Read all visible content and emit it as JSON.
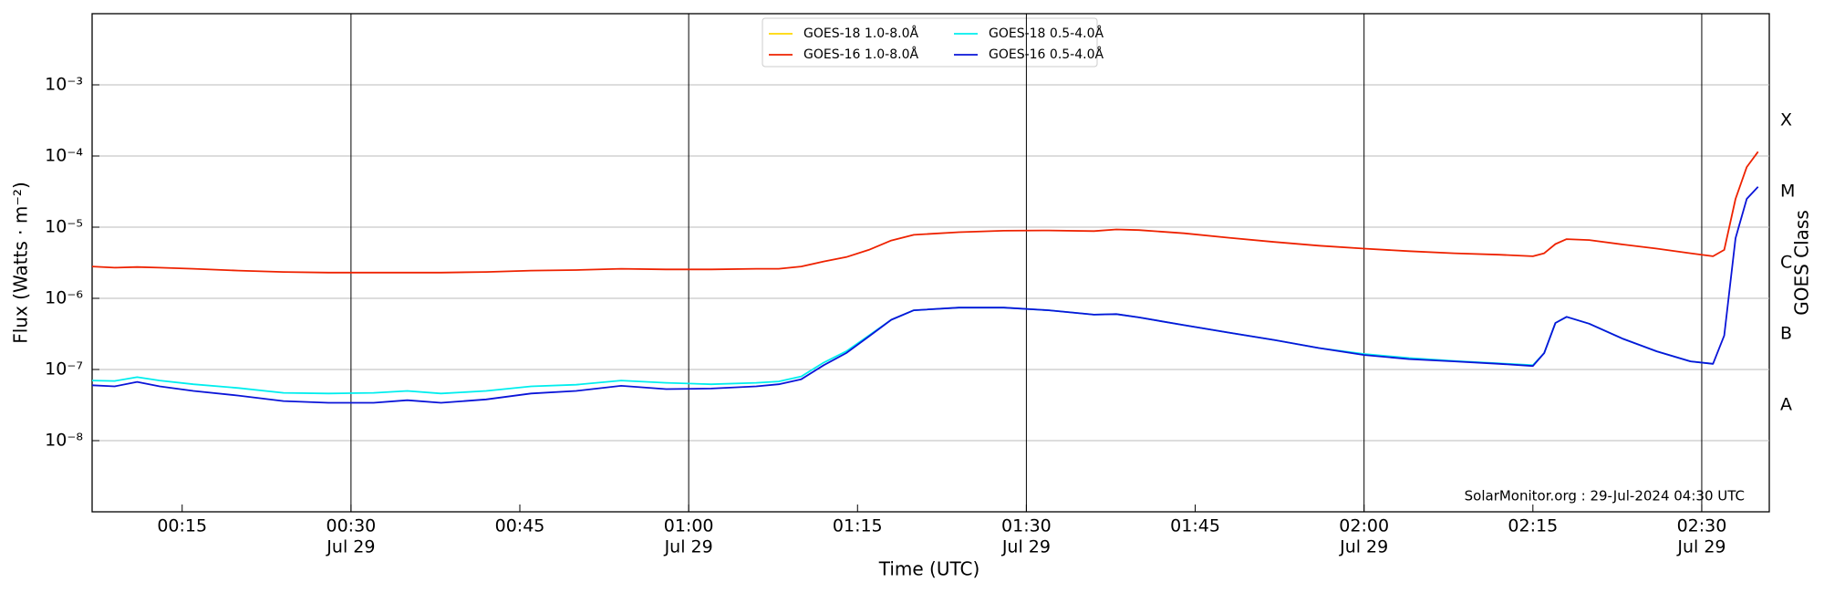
{
  "chart_data": {
    "type": "line",
    "xlabel": "Time (UTC)",
    "ylabel": "Flux (Watts · m⁻²)",
    "y2label": "GOES Class",
    "annotation": "SolarMonitor.org : 29-Jul-2024 04:30 UTC",
    "log_y": true,
    "grid": true,
    "legend": "upper center",
    "x": [
      "00:07",
      "00:09",
      "00:11",
      "00:13",
      "00:16",
      "00:20",
      "00:24",
      "00:28",
      "00:32",
      "00:35",
      "00:38",
      "00:42",
      "00:46",
      "00:50",
      "00:54",
      "00:58",
      "01:02",
      "01:06",
      "01:08",
      "01:10",
      "01:12",
      "01:14",
      "01:16",
      "01:18",
      "01:20",
      "01:24",
      "01:28",
      "01:32",
      "01:36",
      "01:38",
      "01:40",
      "01:44",
      "01:48",
      "01:52",
      "01:56",
      "02:00",
      "02:04",
      "02:08",
      "02:12",
      "02:15",
      "02:16",
      "02:17",
      "02:18",
      "02:20",
      "02:23",
      "02:26",
      "02:29",
      "02:31",
      "02:32",
      "02:33",
      "02:34",
      "02:35"
    ],
    "xlim": [
      "00:07",
      "02:36"
    ],
    "xticks": [
      "00:15",
      "00:30",
      "00:45",
      "01:00",
      "01:15",
      "01:30",
      "01:45",
      "02:00",
      "02:15",
      "02:30"
    ],
    "xtick_sublabels": [
      null,
      "Jul 29",
      null,
      "Jul 29",
      null,
      "Jul 29",
      null,
      "Jul 29",
      null,
      "Jul 29"
    ],
    "ylim": [
      1e-09,
      0.01
    ],
    "yticks": [
      {
        "value": 1e-08,
        "label": "10⁻⁸"
      },
      {
        "value": 1e-07,
        "label": "10⁻⁷"
      },
      {
        "value": 1e-06,
        "label": "10⁻⁶"
      },
      {
        "value": 1e-05,
        "label": "10⁻⁵"
      },
      {
        "value": 0.0001,
        "label": "10⁻⁴"
      },
      {
        "value": 0.001,
        "label": "10⁻³"
      }
    ],
    "y2lim": [
      1e-09,
      0.01
    ],
    "y2ticks": [
      {
        "value": 3.16e-08,
        "label": "A"
      },
      {
        "value": 3.16e-07,
        "label": "B"
      },
      {
        "value": 3.16e-06,
        "label": "C"
      },
      {
        "value": 3.16e-05,
        "label": "M"
      },
      {
        "value": 0.000316,
        "label": "X"
      }
    ],
    "series": [
      {
        "name": "GOES-18 1.0-8.0Å",
        "color": "#ffd700",
        "values": [
          null,
          null,
          null,
          null,
          null,
          null,
          null,
          null,
          null,
          null,
          null,
          null,
          null,
          null,
          null,
          null,
          null,
          null,
          null,
          null,
          null,
          null,
          null,
          null,
          null,
          null,
          null,
          null,
          null,
          null,
          null,
          null,
          null,
          null,
          null,
          null,
          null,
          null,
          null,
          null,
          null,
          null,
          null,
          null,
          null,
          null,
          null,
          null,
          null,
          null,
          null,
          null
        ]
      },
      {
        "name": "GOES-16 1.0-8.0Å",
        "color": "#ee2200",
        "values": [
          2.8e-06,
          2.7e-06,
          2.75e-06,
          2.7e-06,
          2.6e-06,
          2.45e-06,
          2.35e-06,
          2.3e-06,
          2.3e-06,
          2.3e-06,
          2.3e-06,
          2.35e-06,
          2.45e-06,
          2.5e-06,
          2.6e-06,
          2.55e-06,
          2.55e-06,
          2.6e-06,
          2.6e-06,
          2.8e-06,
          3.3e-06,
          3.8e-06,
          4.8e-06,
          6.5e-06,
          7.8e-06,
          8.5e-06,
          8.9e-06,
          9e-06,
          8.8e-06,
          9.3e-06,
          9.1e-06,
          8.2e-06,
          7.1e-06,
          6.2e-06,
          5.5e-06,
          5e-06,
          4.6e-06,
          4.3e-06,
          4.1e-06,
          3.9e-06,
          4.3e-06,
          5.8e-06,
          6.8e-06,
          6.6e-06,
          5.7e-06,
          5e-06,
          4.3e-06,
          3.9e-06,
          4.8e-06,
          2.5e-05,
          7e-05,
          0.000115
        ]
      },
      {
        "name": "GOES-18 0.5-4.0Å",
        "color": "#00eeee",
        "values": [
          7e-08,
          6.9e-08,
          7.8e-08,
          7e-08,
          6.2e-08,
          5.5e-08,
          4.7e-08,
          4.6e-08,
          4.7e-08,
          5e-08,
          4.6e-08,
          5e-08,
          5.8e-08,
          6.1e-08,
          7e-08,
          6.5e-08,
          6.2e-08,
          6.5e-08,
          6.8e-08,
          8e-08,
          1.25e-07,
          1.8e-07,
          3e-07,
          5e-07,
          6.8e-07,
          7.4e-07,
          7.4e-07,
          6.8e-07,
          5.9e-07,
          6e-07,
          5.4e-07,
          4.2e-07,
          3.3e-07,
          2.6e-07,
          2e-07,
          1.65e-07,
          1.45e-07,
          1.32e-07,
          1.22e-07,
          1.15e-07,
          1.7e-07,
          4.5e-07,
          5.5e-07,
          4.4e-07,
          2.7e-07,
          1.8e-07,
          1.3e-07,
          1.2e-07,
          null,
          null,
          null,
          null
        ]
      },
      {
        "name": "GOES-16 0.5-4.0Å",
        "color": "#0a14d8",
        "values": [
          6e-08,
          5.8e-08,
          6.7e-08,
          5.8e-08,
          5e-08,
          4.3e-08,
          3.6e-08,
          3.4e-08,
          3.4e-08,
          3.7e-08,
          3.4e-08,
          3.8e-08,
          4.6e-08,
          5e-08,
          5.9e-08,
          5.3e-08,
          5.4e-08,
          5.8e-08,
          6.2e-08,
          7.3e-08,
          1.15e-07,
          1.7e-07,
          2.9e-07,
          5e-07,
          6.8e-07,
          7.4e-07,
          7.4e-07,
          6.8e-07,
          5.9e-07,
          6e-07,
          5.4e-07,
          4.2e-07,
          3.3e-07,
          2.6e-07,
          2e-07,
          1.6e-07,
          1.4e-07,
          1.3e-07,
          1.2e-07,
          1.12e-07,
          1.7e-07,
          4.5e-07,
          5.5e-07,
          4.4e-07,
          2.7e-07,
          1.8e-07,
          1.3e-07,
          1.2e-07,
          3e-07,
          7e-06,
          2.5e-05,
          3.7e-05
        ]
      }
    ]
  }
}
